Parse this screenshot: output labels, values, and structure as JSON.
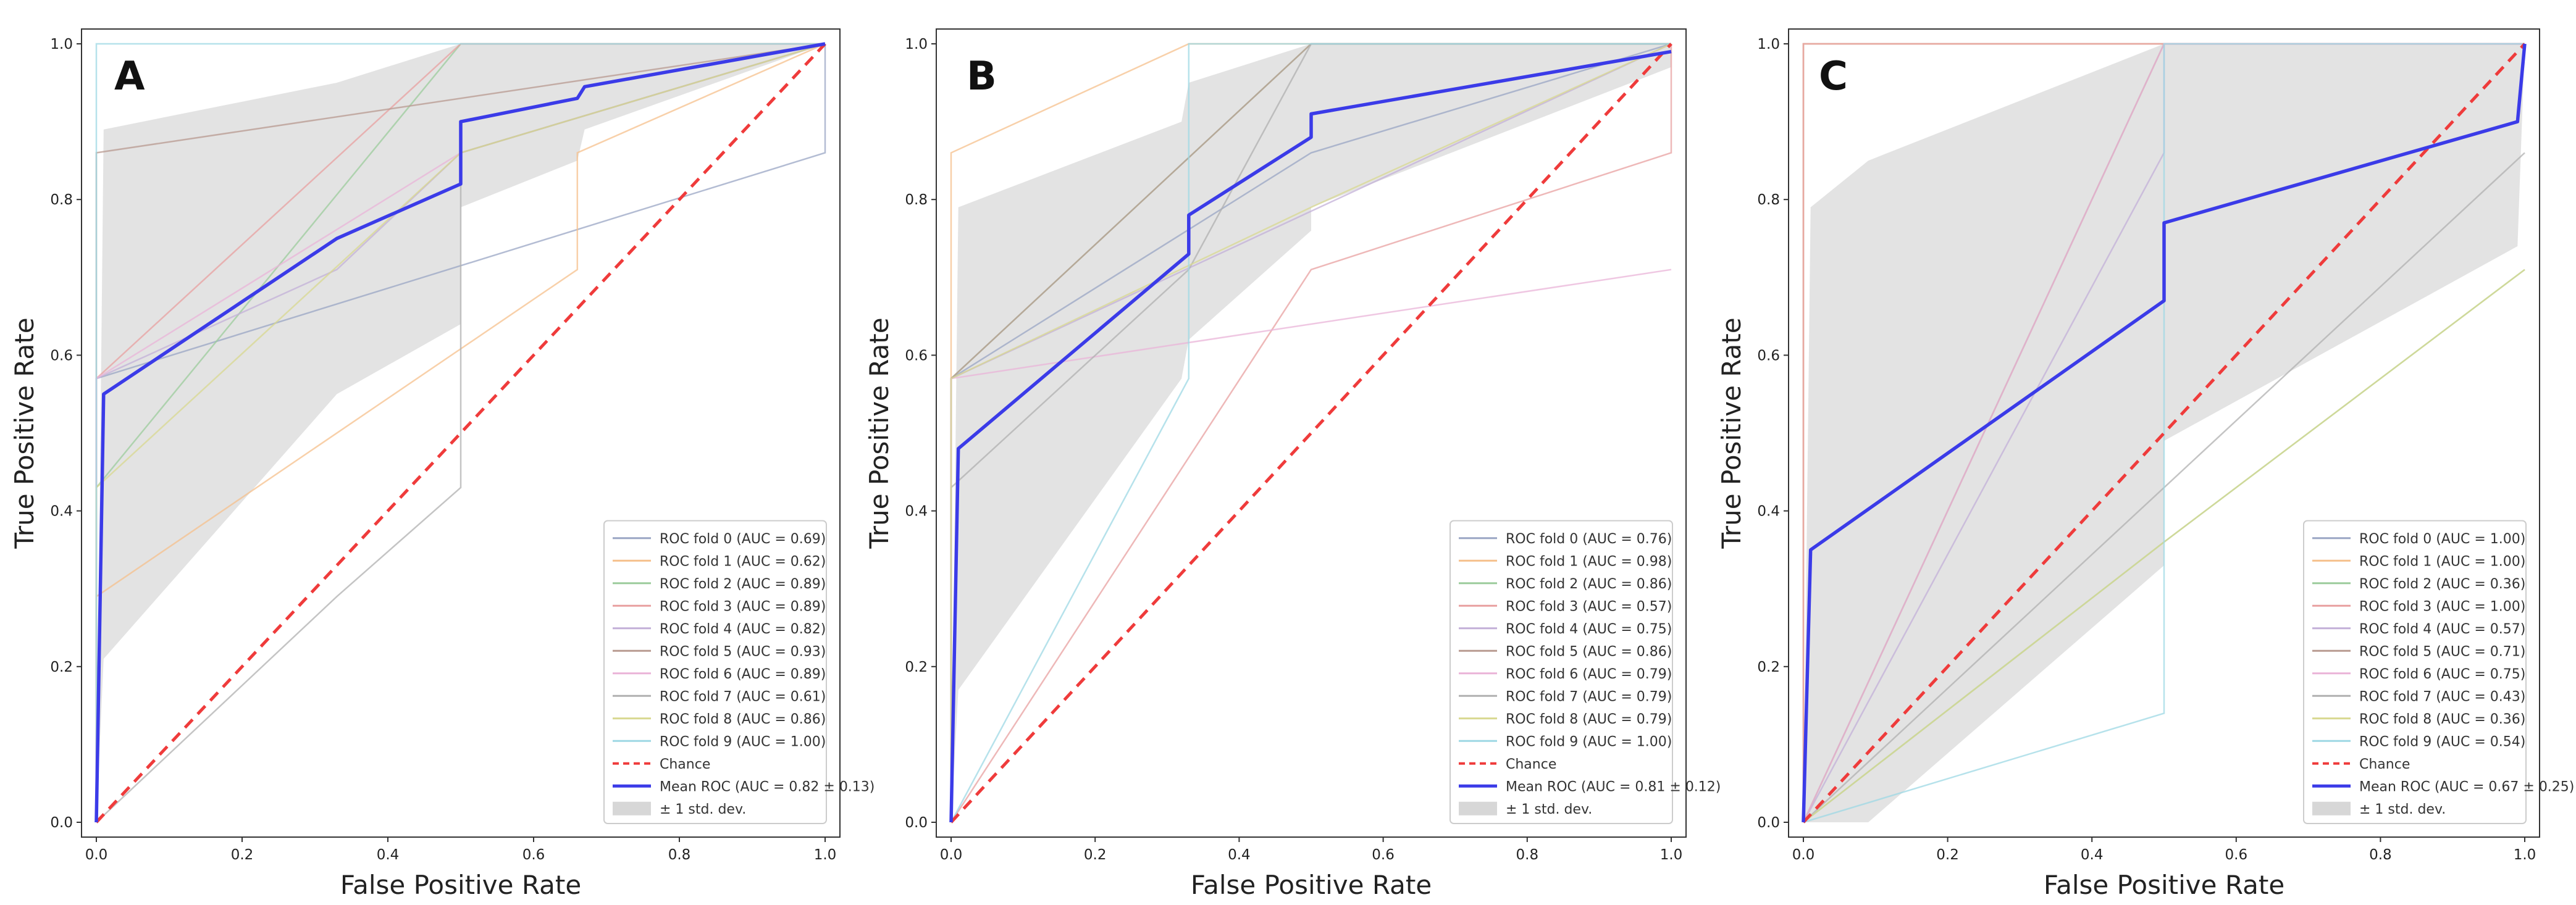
{
  "chart_data": [
    {
      "type": "line",
      "panel_label": "A",
      "xlabel": "False Positive Rate",
      "ylabel": "True Positive Rate",
      "xlim": [
        0,
        1
      ],
      "ylim": [
        0,
        1
      ],
      "xticks": [
        "0.0",
        "0.2",
        "0.4",
        "0.6",
        "0.8",
        "1.0"
      ],
      "yticks": [
        "0.0",
        "0.2",
        "0.4",
        "0.6",
        "0.8",
        "1.0"
      ],
      "grid": false,
      "legend_position": "lower-right",
      "folds": [
        {
          "name": "ROC fold 0 (AUC = 0.69)",
          "color": "#9aa6c4",
          "x": [
            0,
            0,
            1,
            1
          ],
          "y": [
            0,
            0.57,
            0.86,
            1
          ]
        },
        {
          "name": "ROC fold 1 (AUC = 0.62)",
          "color": "#f5c08c",
          "x": [
            0,
            0,
            0.66,
            0.66,
            1
          ],
          "y": [
            0,
            0.29,
            0.71,
            0.86,
            1
          ]
        },
        {
          "name": "ROC fold 2 (AUC = 0.89)",
          "color": "#9ccc9c",
          "x": [
            0,
            0,
            0.5,
            1
          ],
          "y": [
            0,
            0.43,
            1,
            1
          ]
        },
        {
          "name": "ROC fold 3 (AUC = 0.89)",
          "color": "#e8a0a0",
          "x": [
            0,
            0,
            0.5,
            1
          ],
          "y": [
            0,
            0.57,
            1,
            1
          ]
        },
        {
          "name": "ROC fold 4 (AUC = 0.82)",
          "color": "#c3b0d8",
          "x": [
            0,
            0,
            0.33,
            0.5,
            1
          ],
          "y": [
            0,
            0.57,
            0.71,
            0.86,
            1
          ]
        },
        {
          "name": "ROC fold 5 (AUC = 0.93)",
          "color": "#b89a90",
          "x": [
            0,
            0,
            1
          ],
          "y": [
            0,
            0.86,
            1
          ]
        },
        {
          "name": "ROC fold 6 (AUC = 0.89)",
          "color": "#eab4d8",
          "x": [
            0,
            0,
            0.5,
            1
          ],
          "y": [
            0,
            0.57,
            0.86,
            1
          ]
        },
        {
          "name": "ROC fold 7 (AUC = 0.61)",
          "color": "#b0b0b0",
          "x": [
            0,
            0.33,
            0.5,
            0.5,
            1
          ],
          "y": [
            0,
            0.29,
            0.43,
            0.86,
            1
          ]
        },
        {
          "name": "ROC fold 8 (AUC = 0.86)",
          "color": "#d8d890",
          "x": [
            0,
            0,
            0.5,
            1
          ],
          "y": [
            0,
            0.43,
            0.86,
            1
          ]
        },
        {
          "name": "ROC fold 9 (AUC = 1.00)",
          "color": "#9ed8e4",
          "x": [
            0,
            0,
            1
          ],
          "y": [
            0,
            1,
            1
          ]
        }
      ],
      "chance": {
        "name": "Chance",
        "color": "#ef3b3b"
      },
      "mean": {
        "name": "Mean ROC (AUC = 0.82 ± 0.13)",
        "color": "#3b3be8",
        "x": [
          0,
          0.01,
          0.33,
          0.5,
          0.5,
          0.66,
          0.67,
          1
        ],
        "y": [
          0,
          0.55,
          0.75,
          0.82,
          0.9,
          0.93,
          0.945,
          1
        ]
      },
      "band": {
        "name": "± 1 std. dev.",
        "x": [
          0,
          0.01,
          0.33,
          0.5,
          0.5,
          0.66,
          0.67,
          1
        ],
        "upper": [
          0,
          0.89,
          0.95,
          1,
          1,
          1,
          1,
          1
        ],
        "lower": [
          0,
          0.21,
          0.55,
          0.64,
          0.79,
          0.85,
          0.89,
          1
        ]
      }
    },
    {
      "type": "line",
      "panel_label": "B",
      "xlabel": "False Positive Rate",
      "ylabel": "True Positive Rate",
      "xlim": [
        0,
        1
      ],
      "ylim": [
        0,
        1
      ],
      "xticks": [
        "0.0",
        "0.2",
        "0.4",
        "0.6",
        "0.8",
        "1.0"
      ],
      "yticks": [
        "0.0",
        "0.2",
        "0.4",
        "0.6",
        "0.8",
        "1.0"
      ],
      "grid": false,
      "legend_position": "lower-right",
      "folds": [
        {
          "name": "ROC fold 0 (AUC = 0.76)",
          "color": "#9aa6c4",
          "x": [
            0,
            0,
            0.5,
            1
          ],
          "y": [
            0,
            0.57,
            0.86,
            1
          ]
        },
        {
          "name": "ROC fold 1 (AUC = 0.98)",
          "color": "#f5c08c",
          "x": [
            0,
            0,
            0.33,
            1,
            1
          ],
          "y": [
            0,
            0.86,
            1,
            1,
            1
          ]
        },
        {
          "name": "ROC fold 2 (AUC = 0.86)",
          "color": "#9ccc9c",
          "x": [
            0,
            0,
            0.5,
            1
          ],
          "y": [
            0,
            0.57,
            1,
            1
          ]
        },
        {
          "name": "ROC fold 3 (AUC = 0.57)",
          "color": "#e8a0a0",
          "x": [
            0,
            0,
            0.5,
            1,
            1
          ],
          "y": [
            0,
            0,
            0.71,
            0.86,
            1
          ]
        },
        {
          "name": "ROC fold 4 (AUC = 0.75)",
          "color": "#c3b0d8",
          "x": [
            0,
            0,
            1
          ],
          "y": [
            0,
            0.57,
            1
          ]
        },
        {
          "name": "ROC fold 5 (AUC = 0.86)",
          "color": "#b89a90",
          "x": [
            0,
            0,
            0.5,
            1
          ],
          "y": [
            0,
            0.57,
            1,
            1
          ]
        },
        {
          "name": "ROC fold 6 (AUC = 0.79)",
          "color": "#eab4d8",
          "x": [
            0,
            0,
            1
          ],
          "y": [
            0,
            0.57,
            0.71
          ]
        },
        {
          "name": "ROC fold 7 (AUC = 0.79)",
          "color": "#b0b0b0",
          "x": [
            0,
            0,
            0.33,
            0.5,
            1
          ],
          "y": [
            0,
            0.43,
            0.71,
            1,
            1
          ]
        },
        {
          "name": "ROC fold 8 (AUC = 0.79)",
          "color": "#d8d890",
          "x": [
            0,
            0,
            0.5,
            1
          ],
          "y": [
            0,
            0.57,
            0.79,
            1
          ]
        },
        {
          "name": "ROC fold 9 (AUC = 1.00)",
          "color": "#9ed8e4",
          "x": [
            0,
            0,
            0.33,
            0.33,
            1
          ],
          "y": [
            0,
            0,
            0.57,
            1,
            1
          ]
        }
      ],
      "chance": {
        "name": "Chance",
        "color": "#ef3b3b"
      },
      "mean": {
        "name": "Mean ROC (AUC = 0.81 ± 0.12)",
        "color": "#3b3be8",
        "x": [
          0,
          0.01,
          0.33,
          0.33,
          0.5,
          0.5,
          1
        ],
        "y": [
          0,
          0.48,
          0.73,
          0.78,
          0.88,
          0.91,
          0.99
        ]
      },
      "band": {
        "name": "± 1 std. dev.",
        "x": [
          0,
          0.01,
          0.32,
          0.33,
          0.5,
          0.5,
          1
        ],
        "upper": [
          0,
          0.79,
          0.9,
          0.95,
          1,
          1,
          1
        ],
        "lower": [
          0,
          0.17,
          0.57,
          0.62,
          0.76,
          0.79,
          0.97
        ]
      }
    },
    {
      "type": "line",
      "panel_label": "C",
      "xlabel": "False Positive Rate",
      "ylabel": "True Positive Rate",
      "xlim": [
        0,
        1
      ],
      "ylim": [
        0,
        1
      ],
      "xticks": [
        "0.0",
        "0.2",
        "0.4",
        "0.6",
        "0.8",
        "1.0"
      ],
      "yticks": [
        "0.0",
        "0.2",
        "0.4",
        "0.6",
        "0.8",
        "1.0"
      ],
      "grid": false,
      "legend_position": "lower-right",
      "folds": [
        {
          "name": "ROC fold 0 (AUC = 1.00)",
          "color": "#9aa6c4",
          "x": [
            0,
            0,
            1
          ],
          "y": [
            0,
            1,
            1
          ]
        },
        {
          "name": "ROC fold 1 (AUC = 1.00)",
          "color": "#f5c08c",
          "x": [
            0,
            0,
            1
          ],
          "y": [
            0,
            1,
            1
          ]
        },
        {
          "name": "ROC fold 2 (AUC = 0.36)",
          "color": "#9ccc9c",
          "x": [
            0,
            0.5,
            1
          ],
          "y": [
            0,
            0.36,
            0.71
          ]
        },
        {
          "name": "ROC fold 3 (AUC = 1.00)",
          "color": "#e8a0a0",
          "x": [
            0,
            0,
            1
          ],
          "y": [
            0,
            1,
            1
          ]
        },
        {
          "name": "ROC fold 4 (AUC = 0.57)",
          "color": "#c3b0d8",
          "x": [
            0,
            0.5,
            0.5,
            1
          ],
          "y": [
            0,
            0.86,
            1,
            1
          ]
        },
        {
          "name": "ROC fold 5 (AUC = 0.71)",
          "color": "#b89a90",
          "x": [
            0,
            0.5,
            1
          ],
          "y": [
            0,
            1,
            1
          ]
        },
        {
          "name": "ROC fold 6 (AUC = 0.75)",
          "color": "#eab4d8",
          "x": [
            0,
            0.5,
            1
          ],
          "y": [
            0,
            1,
            1
          ]
        },
        {
          "name": "ROC fold 7 (AUC = 0.43)",
          "color": "#b0b0b0",
          "x": [
            0,
            0.5,
            1
          ],
          "y": [
            0,
            0.43,
            0.86
          ]
        },
        {
          "name": "ROC fold 8 (AUC = 0.36)",
          "color": "#d8d890",
          "x": [
            0,
            0.5,
            1
          ],
          "y": [
            0,
            0.36,
            0.71
          ]
        },
        {
          "name": "ROC fold 9 (AUC = 0.54)",
          "color": "#9ed8e4",
          "x": [
            0,
            0.5,
            0.5,
            1
          ],
          "y": [
            0,
            0.14,
            1,
            1
          ]
        }
      ],
      "chance": {
        "name": "Chance",
        "color": "#ef3b3b"
      },
      "mean": {
        "name": "Mean ROC (AUC = 0.67 ± 0.25)",
        "color": "#3b3be8",
        "x": [
          0,
          0.01,
          0.5,
          0.5,
          0.99,
          1
        ],
        "y": [
          0,
          0.35,
          0.67,
          0.77,
          0.9,
          1
        ]
      },
      "band": {
        "name": "± 1 std. dev.",
        "x": [
          0,
          0.01,
          0.09,
          0.5,
          0.5,
          0.99,
          1
        ],
        "upper": [
          0,
          0.79,
          0.85,
          1,
          1,
          1,
          1
        ],
        "lower": [
          0,
          0,
          0,
          0.33,
          0.49,
          0.74,
          1
        ]
      }
    }
  ]
}
